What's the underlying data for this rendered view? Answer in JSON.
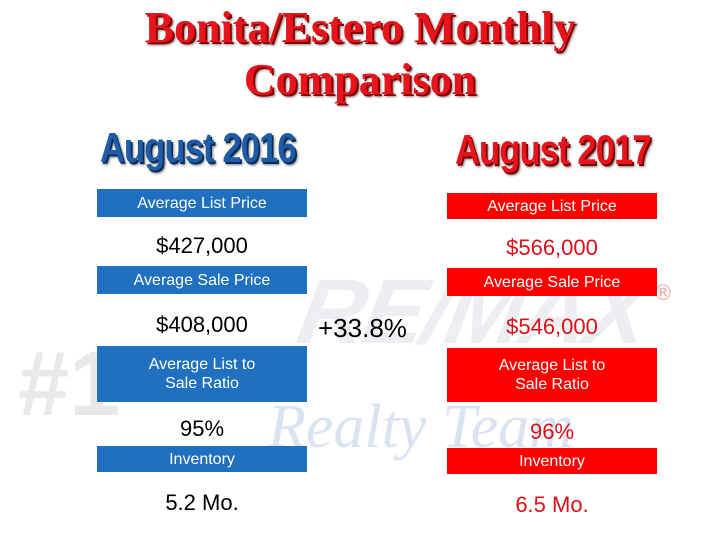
{
  "title": {
    "line1": "Bonita/Estero Monthly",
    "line2": "Comparison"
  },
  "watermark": {
    "brand": "RE/MAX",
    "tagline": "Realty Team",
    "mark": "#1",
    "registered": "®"
  },
  "left": {
    "year": "August 2016",
    "rows": [
      {
        "label": "Average List Price",
        "value": "$427,000"
      },
      {
        "label": "Average Sale Price",
        "value": "$408,000"
      },
      {
        "label": "Average List to Sale Ratio",
        "label_line1": "Average List to",
        "label_line2": "Sale Ratio",
        "value": "95%"
      },
      {
        "label": "Inventory",
        "value": "5.2 Mo."
      }
    ]
  },
  "right": {
    "year": "August 2017",
    "rows": [
      {
        "label": "Average List Price",
        "value": "$566,000"
      },
      {
        "label": "Average Sale Price",
        "value": "$546,000"
      },
      {
        "label": "Average List to Sale Ratio",
        "label_line1": "Average List to",
        "label_line2": "Sale Ratio",
        "value": "96%"
      },
      {
        "label": "Inventory",
        "value": "6.5  Mo."
      }
    ]
  },
  "change": "+33.8%",
  "colors": {
    "title_red": "#e8141c",
    "blue": "#1f70bf",
    "red": "#ff0000",
    "year_blue": "#1e5ca8"
  }
}
